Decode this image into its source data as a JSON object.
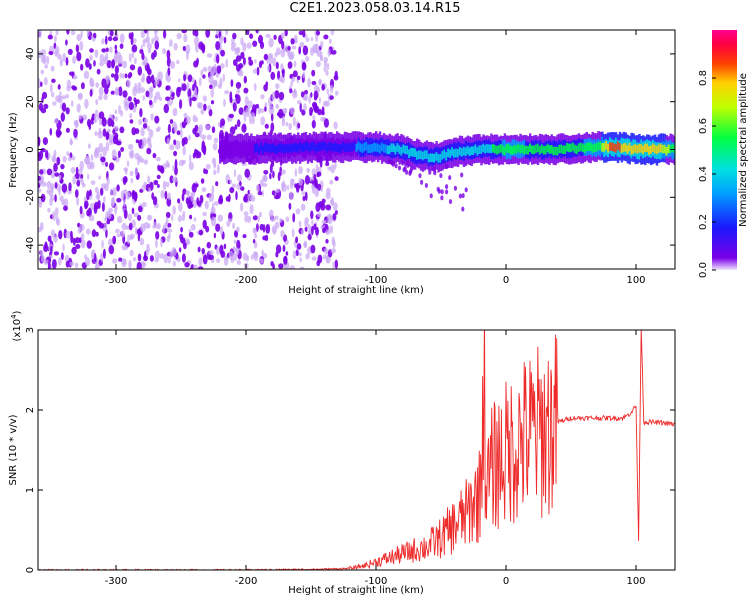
{
  "page_title": "C2E1.2023.058.03.14.R15",
  "colors": {
    "snr_line": "#ee2a2a",
    "spectrogram_noise": "#7a00e6",
    "spectrogram_noise_light": "#c9a6f5",
    "axis": "#000000"
  },
  "colorbar": {
    "label": "Normalized spectral amplitude",
    "ticks": [
      "0.0",
      "0.2",
      "0.4",
      "0.6",
      "0.8"
    ],
    "tick_values": [
      0.0,
      0.2,
      0.4,
      0.6,
      0.8
    ],
    "range": [
      0,
      1
    ],
    "colormap": "hsv-rainbow (purple-blue-cyan-green-yellow-red-magenta)"
  },
  "chart_data": [
    {
      "type": "heatmap",
      "title": "",
      "xlabel": "Height of straight line (km)",
      "ylabel": "Frequency (Hz)",
      "xlim": [
        -360,
        130
      ],
      "ylim": [
        -50,
        50
      ],
      "x_ticks": [
        -300,
        -200,
        -100,
        0,
        100
      ],
      "x_tick_labels": [
        "-300",
        "-200",
        "-100",
        "0",
        "100"
      ],
      "y_ticks": [
        -40,
        -20,
        0,
        20,
        40
      ],
      "y_tick_labels": [
        "-40",
        "-20",
        "0",
        "20",
        "40"
      ],
      "grid": false,
      "features": {
        "noise_region_x": [
          -360,
          -130
        ],
        "noise_amplitude_range": [
          0.0,
          0.15
        ],
        "signal_band": {
          "x": [
            -220,
            -130,
            -100,
            -80,
            -70,
            -60,
            -50,
            -40,
            -20,
            0,
            40,
            70,
            80,
            90,
            100,
            115,
            130
          ],
          "center_frequency": [
            0,
            1,
            1,
            0,
            -2,
            -3,
            -3,
            -1,
            0,
            0,
            0,
            1,
            1,
            1,
            0,
            0,
            0
          ],
          "amplitude": [
            0.15,
            0.25,
            0.4,
            0.45,
            0.5,
            0.5,
            0.45,
            0.45,
            0.5,
            0.6,
            0.55,
            0.6,
            0.9,
            0.85,
            0.8,
            0.85,
            0.6
          ]
        }
      }
    },
    {
      "type": "line",
      "title": "",
      "xlabel": "Height of straight line (km)",
      "ylabel": "SNR (10 * v/v)",
      "y_scale_label": "(x10",
      "y_scale_exponent": "4",
      "y_scale_suffix": ")",
      "xlim": [
        -360,
        130
      ],
      "ylim": [
        0,
        3
      ],
      "x_ticks": [
        -300,
        -200,
        -100,
        0,
        100
      ],
      "x_tick_labels": [
        "-300",
        "-200",
        "-100",
        "0",
        "100"
      ],
      "y_ticks": [
        0,
        1,
        2,
        3
      ],
      "y_tick_labels": [
        "0",
        "1",
        "2",
        "3"
      ],
      "grid": false,
      "series": [
        {
          "x": [
            -360,
            -300,
            -200,
            -140,
            -120,
            -110,
            -100,
            -90,
            -80,
            -70,
            -60,
            -50,
            -40,
            -30,
            -25,
            -20,
            -17,
            -15,
            -10,
            0,
            10,
            20,
            30,
            40,
            50,
            60,
            70,
            80,
            90,
            95,
            100,
            102,
            104,
            106,
            110,
            120,
            130
          ],
          "y": [
            0.0,
            0.0,
            0.0,
            0.01,
            0.02,
            0.05,
            0.1,
            0.15,
            0.2,
            0.25,
            0.3,
            0.4,
            0.55,
            0.7,
            0.85,
            0.95,
            2.5,
            1.0,
            1.3,
            1.45,
            1.6,
            1.7,
            1.75,
            1.85,
            1.9,
            1.9,
            1.9,
            1.9,
            1.9,
            1.95,
            2.05,
            0.38,
            3.05,
            1.85,
            1.85,
            1.84,
            1.82
          ]
        }
      ]
    }
  ]
}
